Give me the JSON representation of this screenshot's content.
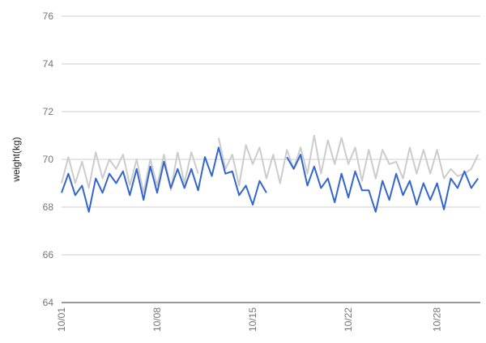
{
  "chart_data": {
    "type": "line",
    "ylabel": "weight(kg)",
    "categories": [
      "10/01",
      null,
      null,
      null,
      null,
      null,
      null,
      null,
      null,
      null,
      null,
      null,
      null,
      null,
      "10/08",
      null,
      null,
      null,
      null,
      null,
      null,
      null,
      null,
      null,
      null,
      null,
      null,
      null,
      "10/15",
      null,
      null,
      null,
      null,
      null,
      null,
      null,
      null,
      null,
      null,
      null,
      null,
      null,
      "10/22",
      null,
      null,
      null,
      null,
      null,
      null,
      null,
      null,
      null,
      null,
      null,
      null,
      "10/28",
      null,
      null,
      null,
      null,
      null,
      null
    ],
    "series": [
      {
        "color": "#cccccc",
        "values": [
          69.0,
          70.1,
          69.0,
          69.9,
          68.8,
          70.3,
          69.2,
          70.0,
          69.6,
          70.2,
          68.9,
          70.0,
          68.6,
          70.0,
          68.9,
          70.2,
          68.7,
          70.3,
          69.0,
          70.3,
          69.4,
          null,
          null,
          70.9,
          69.6,
          70.2,
          68.9,
          70.6,
          69.8,
          70.5,
          69.2,
          70.2,
          69.0,
          70.4,
          69.6,
          70.5,
          69.4,
          71.0,
          69.4,
          70.8,
          69.8,
          70.9,
          69.8,
          70.5,
          69.1,
          70.4,
          69.2,
          70.4,
          69.8,
          69.9,
          69.2,
          70.5,
          69.4,
          70.4,
          69.4,
          70.4,
          69.2,
          69.6,
          69.3,
          69.4,
          69.6,
          70.2
        ]
      },
      {
        "color": "#3366cc",
        "values": [
          68.6,
          69.4,
          68.5,
          68.9,
          67.8,
          69.2,
          68.6,
          69.4,
          69.0,
          69.5,
          68.5,
          69.6,
          68.3,
          69.7,
          68.6,
          69.9,
          68.8,
          69.6,
          68.8,
          69.6,
          68.7,
          70.1,
          69.3,
          70.5,
          69.4,
          69.5,
          68.5,
          68.9,
          68.1,
          69.1,
          68.6,
          null,
          null,
          70.1,
          69.6,
          70.2,
          68.9,
          69.7,
          68.8,
          69.2,
          68.2,
          69.4,
          68.4,
          69.5,
          68.7,
          68.7,
          67.8,
          69.1,
          68.3,
          69.4,
          68.5,
          69.1,
          68.1,
          69.0,
          68.3,
          69.0,
          67.9,
          69.2,
          68.8,
          69.5,
          68.8,
          69.2
        ]
      }
    ],
    "ylim": [
      64,
      76
    ],
    "yticks": [
      64,
      66,
      68,
      70,
      72,
      74,
      76
    ],
    "grid": true
  }
}
